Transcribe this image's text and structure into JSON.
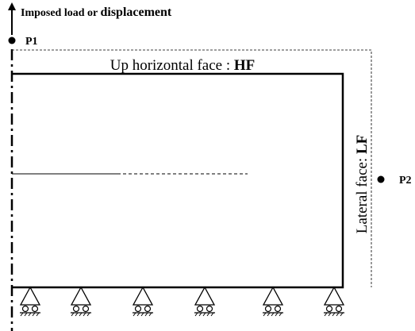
{
  "top_label": {
    "text": "Imposed load or ",
    "bold": "displacement"
  },
  "points": [
    {
      "label": "P1"
    },
    {
      "label": "P2"
    }
  ],
  "faces": {
    "horizontal": {
      "text": "Up horizontal face : ",
      "abbr": "HF"
    },
    "lateral": {
      "text": "Lateral face: ",
      "abbr": "LF"
    }
  }
}
